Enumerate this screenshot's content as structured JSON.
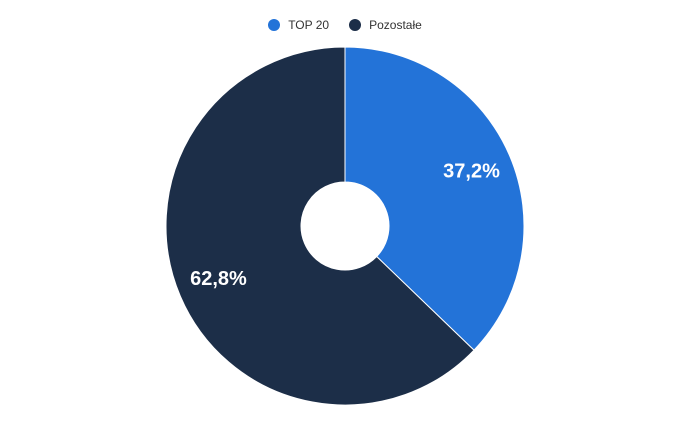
{
  "chart_data": {
    "type": "pie",
    "donut": true,
    "legend_position": "top-center",
    "series": [
      {
        "name": "TOP 20",
        "value": 37.2,
        "label": "37,2%",
        "color": "#2373d8"
      },
      {
        "name": "Pozostałe",
        "value": 62.8,
        "label": "62,8%",
        "color": "#1c2e48"
      }
    ]
  }
}
